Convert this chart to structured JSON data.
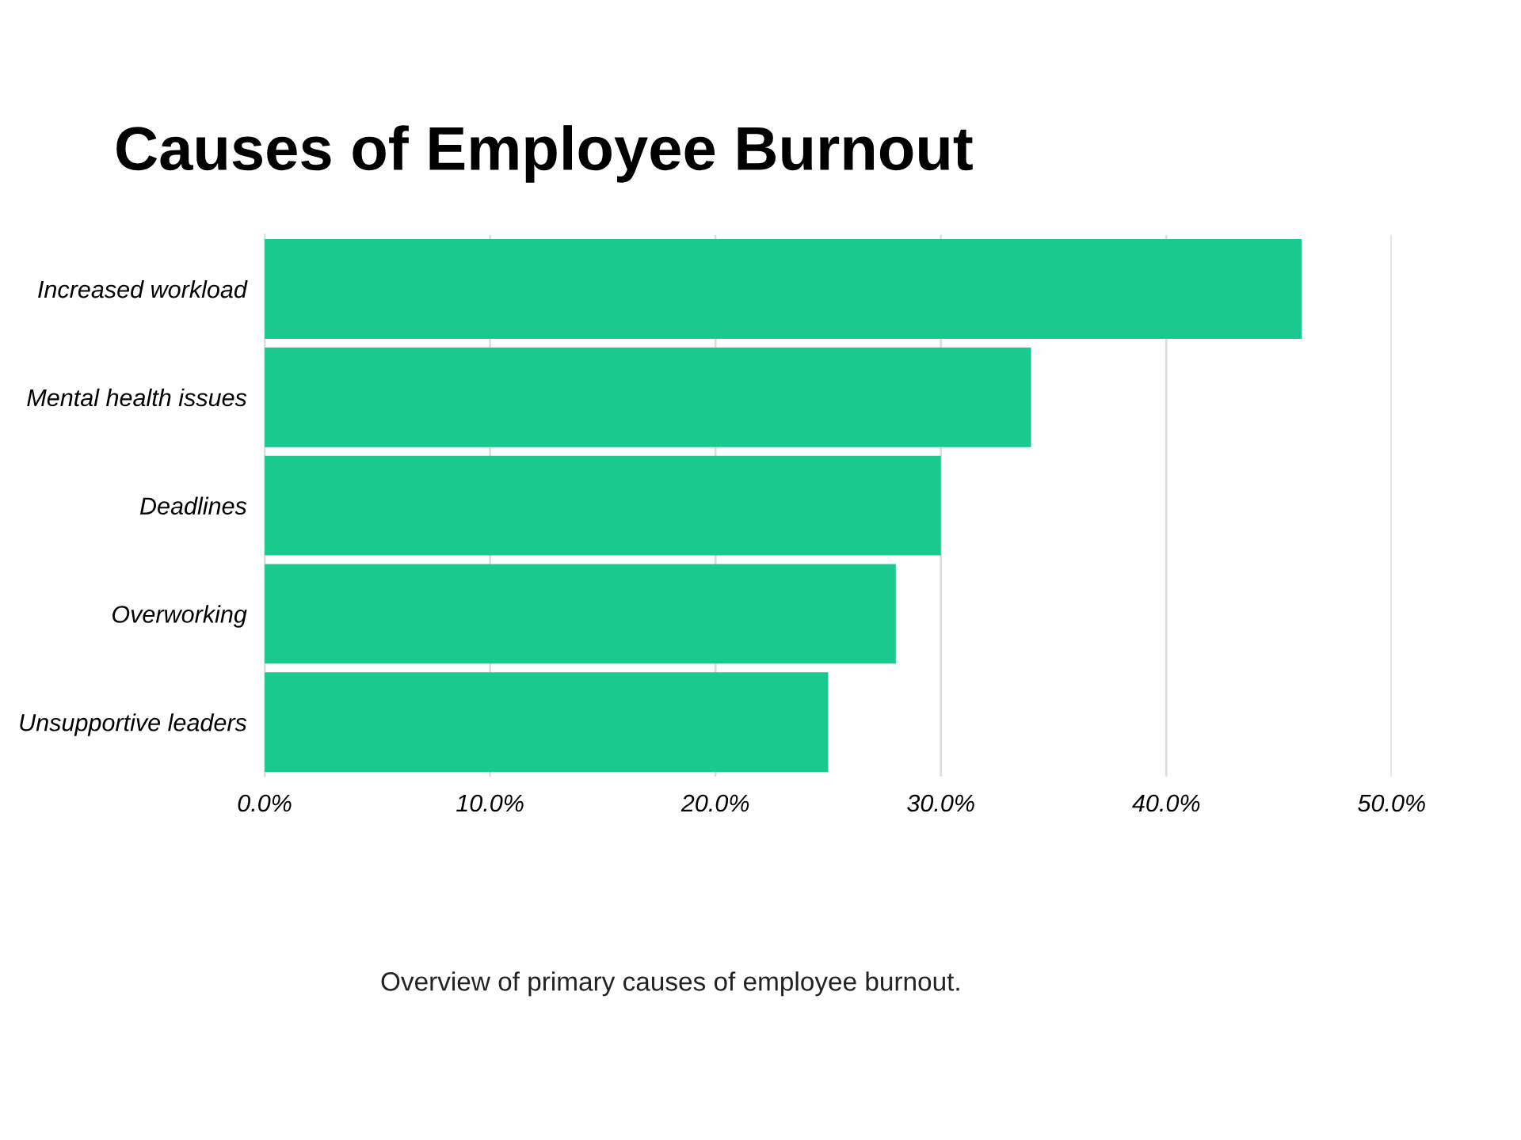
{
  "chart_data": {
    "type": "bar",
    "orientation": "horizontal",
    "title": "Causes of Employee Burnout",
    "categories": [
      "Increased workload",
      "Mental health issues",
      "Deadlines",
      "Overworking",
      "Unsupportive leaders"
    ],
    "values": [
      46,
      34,
      30,
      28,
      25
    ],
    "color": "#1ac98e",
    "xlim": [
      0,
      50
    ],
    "xticks": [
      {
        "value": 0,
        "label": "0.0%"
      },
      {
        "value": 10,
        "label": "10.0%"
      },
      {
        "value": 20,
        "label": "20.0%"
      },
      {
        "value": 30,
        "label": "30.0%"
      },
      {
        "value": 40,
        "label": "40.0%"
      },
      {
        "value": 50,
        "label": "50.0%"
      }
    ],
    "grid": "x",
    "annotations": [
      "Overview of primary causes of employee burnout."
    ]
  }
}
